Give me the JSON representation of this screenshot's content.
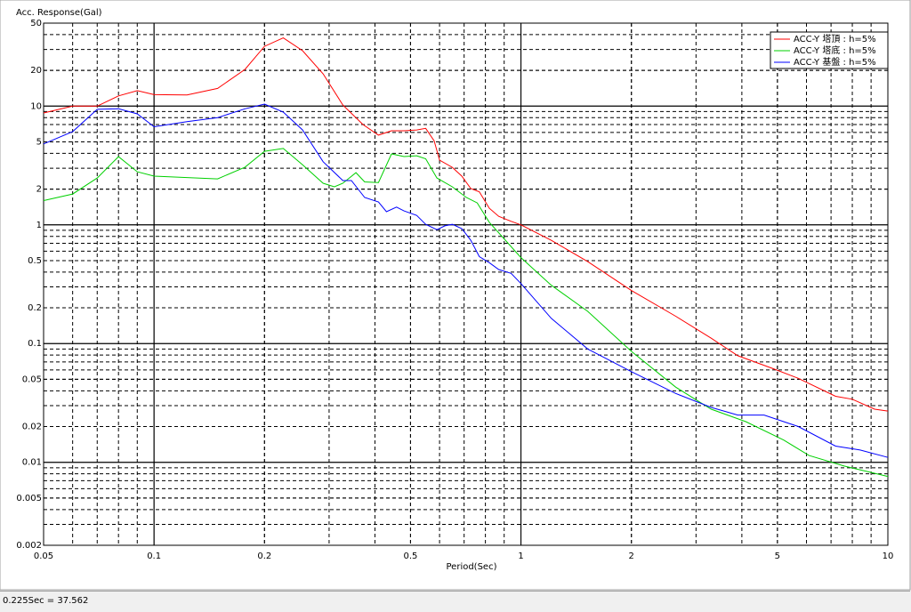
{
  "chart_data": {
    "type": "line",
    "title": "Acc. Response(Gal)",
    "x_label": "Period(Sec)",
    "xscale": "log",
    "yscale": "log",
    "grid": true,
    "legend": "upper right",
    "xlim": [
      0.05,
      10
    ],
    "ylim": [
      0.002,
      50
    ],
    "xticks": [
      0.05,
      0.1,
      0.2,
      0.5,
      1,
      2,
      5,
      10
    ],
    "yticks": [
      0.002,
      0.005,
      0.01,
      0.02,
      0.05,
      0.1,
      0.2,
      0.5,
      1,
      2,
      5,
      10,
      20,
      50
    ],
    "series": [
      {
        "name": "ACC-Y 塔頂 : h=5%",
        "color": "#ff0000",
        "x": [
          0.05,
          0.06,
          0.07,
          0.08,
          0.09,
          0.1,
          0.123,
          0.149,
          0.177,
          0.2,
          0.225,
          0.254,
          0.289,
          0.327,
          0.371,
          0.409,
          0.444,
          0.48,
          0.52,
          0.55,
          0.58,
          0.6,
          0.65,
          0.69,
          0.73,
          0.77,
          0.82,
          0.87,
          0.94,
          1.0,
          1.21,
          1.52,
          2.0,
          2.64,
          3.3,
          3.9,
          4.9,
          5.7,
          7.2,
          8.0,
          9.2,
          10
        ],
        "values": [
          8.75,
          10,
          10,
          12.2,
          13.5,
          12.5,
          12.4,
          14.1,
          20.4,
          31.9,
          37.562,
          29.3,
          18.7,
          10.2,
          7,
          5.7,
          6.2,
          6.2,
          6.3,
          6.5,
          5.1,
          3.5,
          3.05,
          2.57,
          2.02,
          1.9,
          1.38,
          1.18,
          1.07,
          1.0,
          0.74,
          0.49,
          0.28,
          0.17,
          0.111,
          0.079,
          0.061,
          0.051,
          0.036,
          0.034,
          0.028,
          0.027
        ]
      },
      {
        "name": "ACC-Y 塔底 : h=5%",
        "color": "#00d000",
        "x": [
          0.05,
          0.06,
          0.07,
          0.08,
          0.09,
          0.1,
          0.149,
          0.177,
          0.2,
          0.225,
          0.254,
          0.289,
          0.31,
          0.327,
          0.355,
          0.375,
          0.409,
          0.444,
          0.48,
          0.52,
          0.55,
          0.59,
          0.65,
          0.71,
          0.76,
          0.82,
          1.0,
          1.21,
          1.52,
          2.0,
          2.64,
          3.3,
          4.1,
          5.2,
          6.1,
          7.6,
          10
        ],
        "values": [
          1.6,
          1.82,
          2.48,
          3.75,
          2.8,
          2.57,
          2.44,
          3.06,
          4.16,
          4.4,
          3.2,
          2.24,
          2.09,
          2.24,
          2.75,
          2.3,
          2.27,
          3.96,
          3.76,
          3.82,
          3.6,
          2.48,
          2.09,
          1.7,
          1.53,
          1.05,
          0.53,
          0.31,
          0.187,
          0.086,
          0.043,
          0.028,
          0.022,
          0.0154,
          0.0114,
          0.0093,
          0.0076
        ]
      },
      {
        "name": "ACC-Y 基盤 : h=5%",
        "color": "#0000ff",
        "x": [
          0.05,
          0.06,
          0.07,
          0.08,
          0.09,
          0.1,
          0.123,
          0.149,
          0.177,
          0.2,
          0.225,
          0.254,
          0.289,
          0.327,
          0.345,
          0.375,
          0.409,
          0.43,
          0.458,
          0.48,
          0.52,
          0.55,
          0.59,
          0.62,
          0.65,
          0.69,
          0.73,
          0.77,
          0.82,
          0.87,
          0.94,
          1.0,
          1.21,
          1.52,
          2.0,
          2.64,
          3.3,
          3.9,
          4.6,
          5.7,
          7.2,
          8.4,
          10
        ],
        "values": [
          4.8,
          6.1,
          9.4,
          9.5,
          8.6,
          6.7,
          7.4,
          8.0,
          9.5,
          10.4,
          8.9,
          6.3,
          3.4,
          2.36,
          2.36,
          1.7,
          1.56,
          1.29,
          1.41,
          1.31,
          1.2,
          1.01,
          0.91,
          0.98,
          1.01,
          0.93,
          0.74,
          0.54,
          0.48,
          0.42,
          0.39,
          0.32,
          0.163,
          0.09,
          0.058,
          0.038,
          0.029,
          0.025,
          0.025,
          0.02,
          0.0137,
          0.0127,
          0.011
        ]
      }
    ]
  },
  "status_bar": {
    "text": "0.225Sec = 37.562"
  }
}
